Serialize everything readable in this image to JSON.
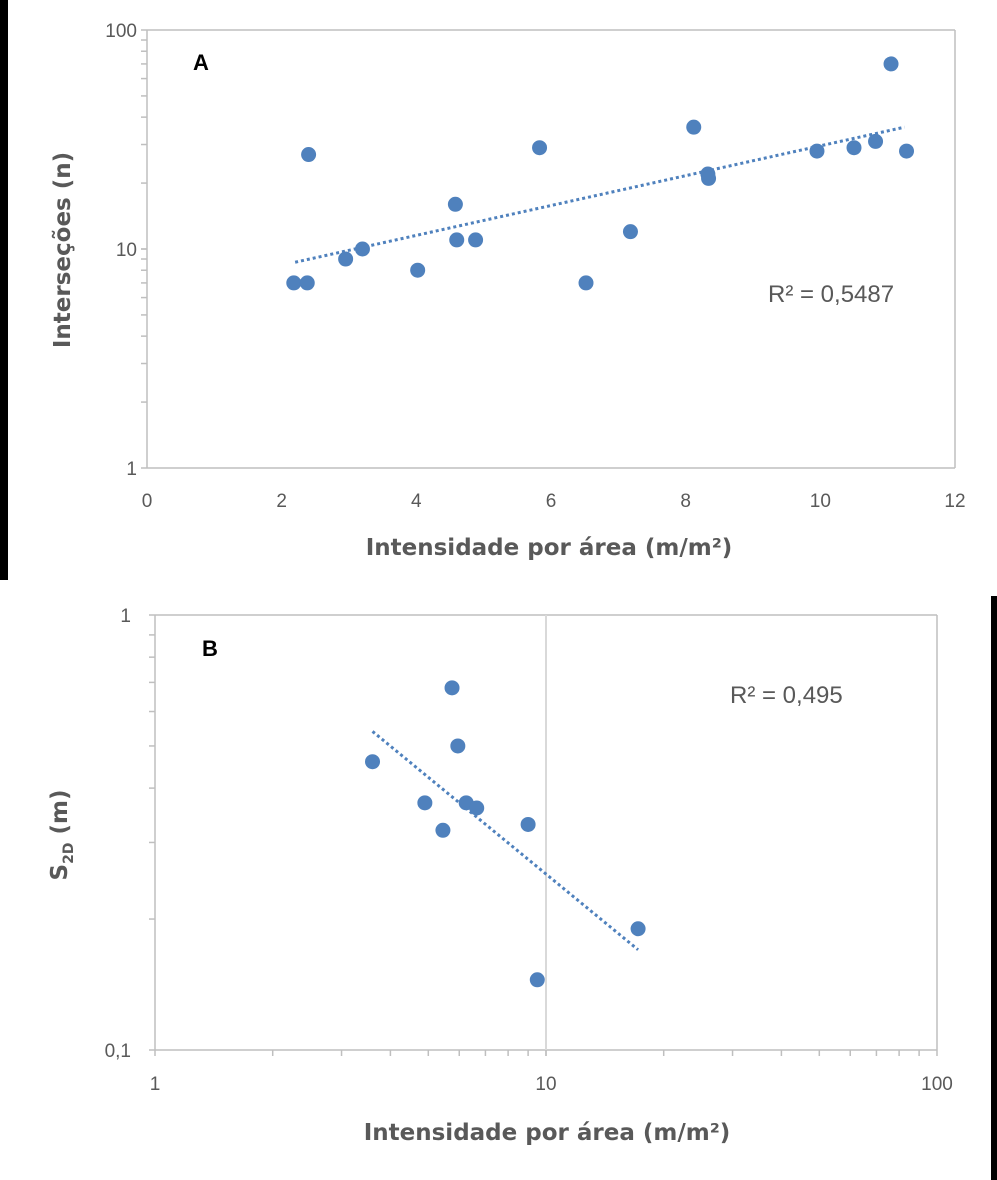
{
  "colors": {
    "marker": "#4f81bd",
    "trendline": "#4f81bd",
    "axis": "#bfbfbf",
    "text": "#595959",
    "border": "#000000"
  },
  "chart_data": [
    {
      "type": "scatter",
      "panel_label": "A",
      "xlabel": "Intensidade por área (m/m²)",
      "ylabel": "Interseções (n)",
      "xscale": "linear",
      "yscale": "log",
      "xlim": [
        0,
        12
      ],
      "ylim": [
        1,
        100
      ],
      "xticks": [
        "0",
        "2",
        "4",
        "6",
        "8",
        "10",
        "12"
      ],
      "yticks": [
        "1",
        "10",
        "100"
      ],
      "grid": false,
      "trendline": {
        "type": "exponential",
        "x_range": [
          2.2,
          11.25
        ],
        "y_range": [
          8.7,
          36
        ]
      },
      "r_squared_label": "R² = 0,5487",
      "points": [
        {
          "x": 2.18,
          "y": 7
        },
        {
          "x": 2.38,
          "y": 7
        },
        {
          "x": 2.4,
          "y": 27
        },
        {
          "x": 2.95,
          "y": 9
        },
        {
          "x": 3.2,
          "y": 10
        },
        {
          "x": 4.02,
          "y": 8
        },
        {
          "x": 4.58,
          "y": 16
        },
        {
          "x": 4.6,
          "y": 11
        },
        {
          "x": 4.88,
          "y": 11
        },
        {
          "x": 5.83,
          "y": 29
        },
        {
          "x": 6.52,
          "y": 7
        },
        {
          "x": 7.18,
          "y": 12
        },
        {
          "x": 8.12,
          "y": 36
        },
        {
          "x": 8.33,
          "y": 22
        },
        {
          "x": 8.34,
          "y": 21
        },
        {
          "x": 9.95,
          "y": 28
        },
        {
          "x": 10.5,
          "y": 29
        },
        {
          "x": 10.82,
          "y": 31
        },
        {
          "x": 11.05,
          "y": 70
        },
        {
          "x": 11.28,
          "y": 28
        }
      ]
    },
    {
      "type": "scatter",
      "panel_label": "B",
      "xlabel": "Intensidade por área (m/m²)",
      "ylabel_main": "S",
      "ylabel_sub": "2D",
      "ylabel_tail": " (m)",
      "xscale": "log",
      "yscale": "log",
      "xlim": [
        1,
        100
      ],
      "ylim": [
        0.1,
        1
      ],
      "xticks": [
        "1",
        "10",
        "100"
      ],
      "yticks": [
        "0,1",
        "1"
      ],
      "grid": false,
      "reference_line_x": 10,
      "trendline": {
        "type": "power",
        "x_range": [
          3.6,
          17.2
        ],
        "y_range": [
          0.54,
          0.17
        ]
      },
      "r_squared_label": "R² = 0,495",
      "points": [
        {
          "x": 3.6,
          "y": 0.46
        },
        {
          "x": 4.9,
          "y": 0.37
        },
        {
          "x": 5.45,
          "y": 0.32
        },
        {
          "x": 5.75,
          "y": 0.68
        },
        {
          "x": 5.95,
          "y": 0.5
        },
        {
          "x": 6.25,
          "y": 0.37
        },
        {
          "x": 6.65,
          "y": 0.36
        },
        {
          "x": 9.0,
          "y": 0.33
        },
        {
          "x": 9.5,
          "y": 0.145
        },
        {
          "x": 17.2,
          "y": 0.19
        }
      ]
    }
  ]
}
